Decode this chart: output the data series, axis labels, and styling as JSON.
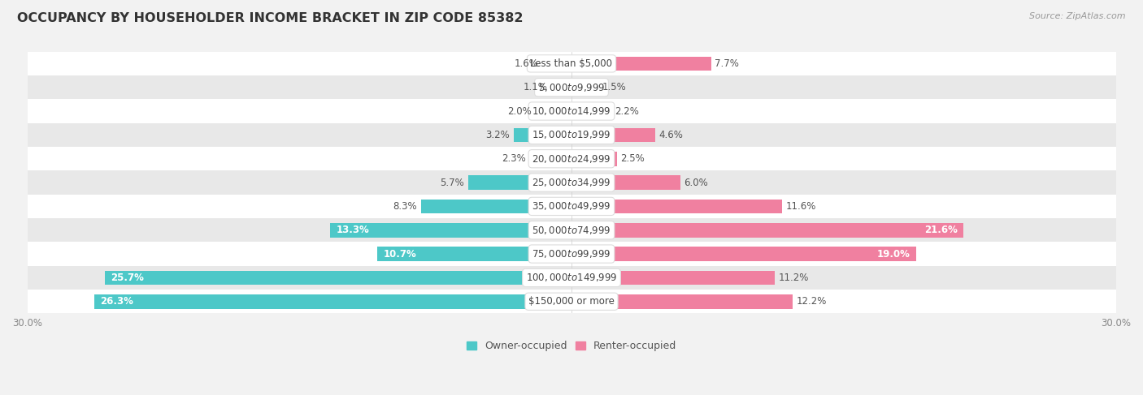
{
  "title": "OCCUPANCY BY HOUSEHOLDER INCOME BRACKET IN ZIP CODE 85382",
  "source": "Source: ZipAtlas.com",
  "categories": [
    "Less than $5,000",
    "$5,000 to $9,999",
    "$10,000 to $14,999",
    "$15,000 to $19,999",
    "$20,000 to $24,999",
    "$25,000 to $34,999",
    "$35,000 to $49,999",
    "$50,000 to $74,999",
    "$75,000 to $99,999",
    "$100,000 to $149,999",
    "$150,000 or more"
  ],
  "owner_values": [
    1.6,
    1.1,
    2.0,
    3.2,
    2.3,
    5.7,
    8.3,
    13.3,
    10.7,
    25.7,
    26.3
  ],
  "renter_values": [
    7.7,
    1.5,
    2.2,
    4.6,
    2.5,
    6.0,
    11.6,
    21.6,
    19.0,
    11.2,
    12.2
  ],
  "owner_color": "#4DC8C8",
  "renter_color": "#F080A0",
  "owner_color_light": "#A8E4E4",
  "renter_color_light": "#F8C0D0",
  "axis_limit": 30.0,
  "bar_height": 0.6,
  "bg_color": "#f2f2f2",
  "row_colors": [
    "#ffffff",
    "#e8e8e8"
  ],
  "label_fontsize": 8.5,
  "title_fontsize": 11.5,
  "source_fontsize": 8.0,
  "axis_label_fontsize": 8.5,
  "legend_fontsize": 9.0,
  "value_fontsize": 8.5
}
